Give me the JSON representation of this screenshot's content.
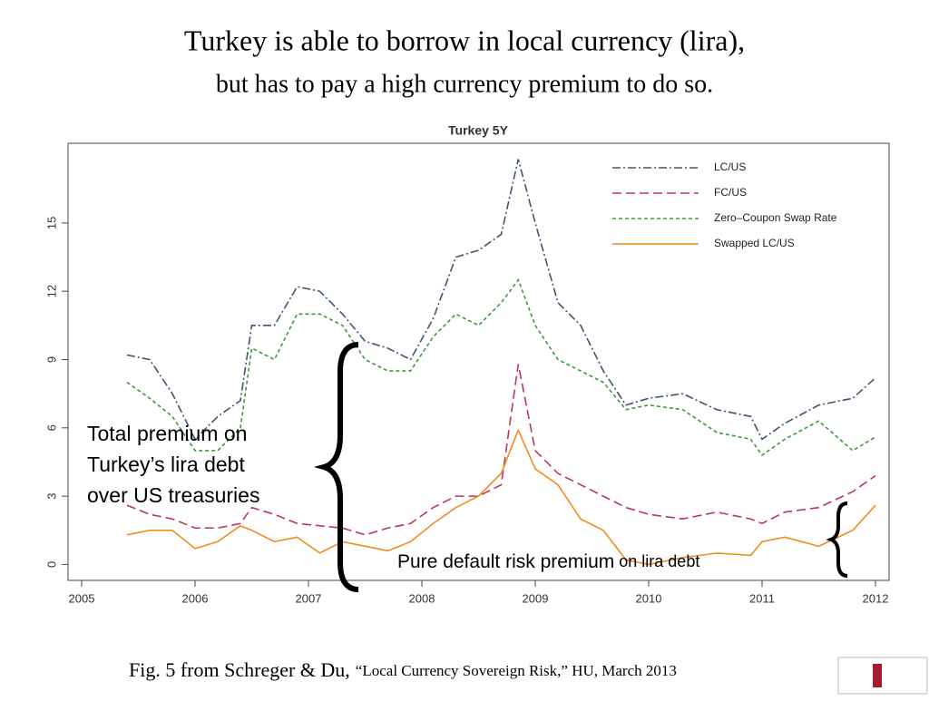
{
  "chart_data": {
    "type": "line",
    "slide_title": "Turkey is able to  borrow in local  currency (lira),",
    "slide_subtitle": "but has to pay a high currency premium to do so.",
    "title": "Turkey 5Y",
    "annotations": {
      "total": [
        "Total premium on",
        "Turkey’s lira debt",
        "over US treasuries"
      ],
      "default": [
        "Pure default risk premium",
        "on lira debt"
      ]
    },
    "footer": [
      "Fig. 5 from Schreger & Du,",
      "“Local Currency Sovereign Risk,” HU, March 2013"
    ],
    "x": [
      2005.4,
      2005.6,
      2005.8,
      2006.0,
      2006.2,
      2006.4,
      2006.5,
      2006.7,
      2006.9,
      2007.1,
      2007.3,
      2007.5,
      2007.7,
      2007.9,
      2008.1,
      2008.3,
      2008.5,
      2008.7,
      2008.85,
      2009.0,
      2009.2,
      2009.4,
      2009.6,
      2009.8,
      2010.0,
      2010.3,
      2010.6,
      2010.9,
      2011.0,
      2011.2,
      2011.5,
      2011.8,
      2012.0
    ],
    "series": [
      {
        "name": "LC/US",
        "color": "#3d5573",
        "dash": "9 3 2 3",
        "values": [
          9.2,
          9.0,
          7.5,
          5.5,
          6.5,
          7.2,
          10.5,
          10.5,
          12.2,
          12.0,
          11.0,
          9.8,
          9.5,
          9.0,
          10.8,
          13.5,
          13.8,
          14.5,
          17.8,
          15.0,
          11.5,
          10.5,
          8.5,
          7.0,
          7.3,
          7.5,
          6.8,
          6.5,
          5.5,
          6.2,
          7.0,
          7.3,
          8.2
        ]
      },
      {
        "name": "FC/US",
        "color": "#b8385a",
        "dash": "10 5",
        "values": [
          2.6,
          2.2,
          2.0,
          1.6,
          1.6,
          1.8,
          2.5,
          2.2,
          1.8,
          1.7,
          1.6,
          1.3,
          1.6,
          1.8,
          2.5,
          3.0,
          3.0,
          3.5,
          8.8,
          5.0,
          4.0,
          3.5,
          3.0,
          2.5,
          2.2,
          2.0,
          2.3,
          2.0,
          1.8,
          2.3,
          2.5,
          3.2,
          3.9
        ]
      },
      {
        "name": "Zero–Coupon Swap Rate",
        "color": "#3a9a3a",
        "dash": "4 3",
        "values": [
          8.0,
          7.3,
          6.5,
          5.0,
          5.0,
          6.0,
          9.5,
          9.0,
          11.0,
          11.0,
          10.5,
          9.0,
          8.5,
          8.5,
          10.0,
          11.0,
          10.5,
          11.5,
          12.5,
          10.5,
          9.0,
          8.5,
          8.0,
          6.8,
          7.0,
          6.8,
          5.8,
          5.5,
          4.8,
          5.5,
          6.3,
          5.0,
          5.6
        ]
      },
      {
        "name": "Swapped LC/US",
        "color": "#f28c1c",
        "dash": "none",
        "values": [
          1.3,
          1.5,
          1.5,
          0.7,
          1.0,
          1.7,
          1.5,
          1.0,
          1.2,
          0.5,
          1.0,
          0.8,
          0.6,
          1.0,
          1.8,
          2.5,
          3.0,
          4.0,
          5.9,
          4.2,
          3.5,
          2.0,
          1.5,
          0.2,
          0,
          0.3,
          0.5,
          0.4,
          1.0,
          1.2,
          0.8,
          1.5,
          2.6
        ]
      }
    ],
    "xlim": [
      2005,
      2012
    ],
    "xticks": [
      2005,
      2006,
      2007,
      2008,
      2009,
      2010,
      2011,
      2012
    ],
    "ylim": [
      -0.7,
      18.5
    ],
    "yticks": [
      0,
      3,
      6,
      9,
      12,
      15
    ],
    "legend": "top-right"
  }
}
